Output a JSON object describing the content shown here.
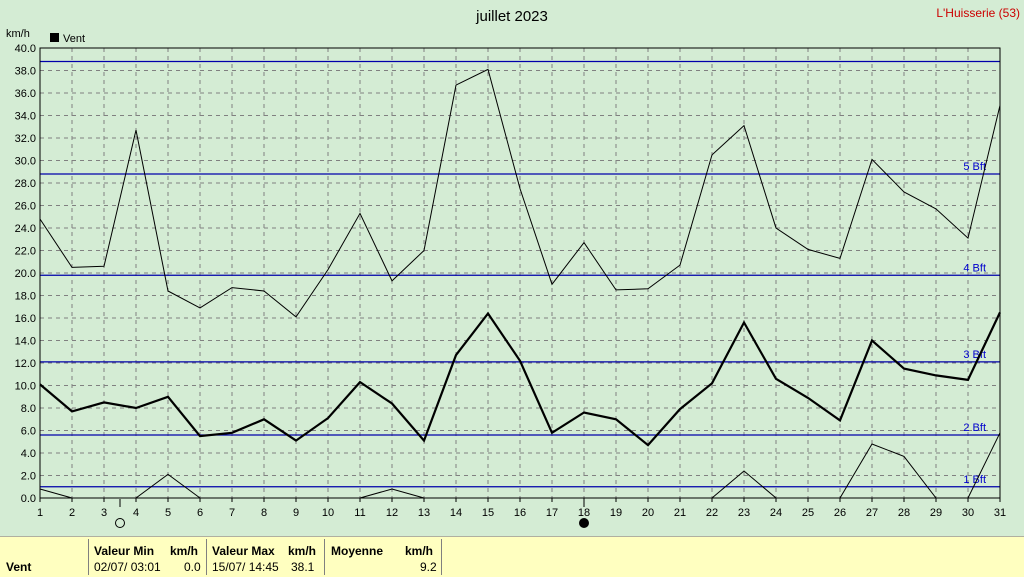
{
  "title": "juillet 2023",
  "station": "L'Huisserie (53)",
  "colors": {
    "background": "#d4ecd4",
    "beaufort_line": "#0000aa",
    "beaufort_text": "#0000cc",
    "grid": "#808080",
    "series": "#000000",
    "station": "#cc0000",
    "footer_bg": "#ffffc0"
  },
  "chart_data": {
    "type": "line",
    "title": "juillet 2023",
    "ylabel": "km/h",
    "xlabel": "",
    "legend": {
      "label": "Vent",
      "placement": "top-left"
    },
    "x": [
      1,
      2,
      3,
      4,
      5,
      6,
      7,
      8,
      9,
      10,
      11,
      12,
      13,
      14,
      15,
      16,
      17,
      18,
      19,
      20,
      21,
      22,
      23,
      24,
      25,
      26,
      27,
      28,
      29,
      30,
      31
    ],
    "xlim": [
      1,
      31
    ],
    "ylim": [
      0,
      40
    ],
    "y_tick_step": 2,
    "y_tick_labels": [
      "0.0",
      "2.0",
      "4.0",
      "6.0",
      "8.0",
      "10.0",
      "12.0",
      "14.0",
      "16.0",
      "18.0",
      "20.0",
      "22.0",
      "24.0",
      "26.0",
      "28.0",
      "30.0",
      "32.0",
      "34.0",
      "36.0",
      "38.0",
      "40.0"
    ],
    "grid": true,
    "series": [
      {
        "name": "Vent",
        "role": "mean",
        "values": [
          10.1,
          7.7,
          8.5,
          8.0,
          9.0,
          5.5,
          5.8,
          7.0,
          5.1,
          7.1,
          10.3,
          8.4,
          5.1,
          12.7,
          16.4,
          12.2,
          5.8,
          7.6,
          7.0,
          4.7,
          7.9,
          10.2,
          15.6,
          10.6,
          8.9,
          6.9,
          14.0,
          11.5,
          10.9,
          10.5,
          16.5
        ]
      },
      {
        "role": "max",
        "values": [
          24.8,
          20.5,
          20.6,
          32.7,
          18.4,
          16.9,
          18.7,
          18.4,
          16.1,
          20.3,
          25.3,
          19.3,
          22.0,
          36.7,
          38.1,
          27.5,
          19.0,
          22.7,
          18.5,
          18.6,
          20.7,
          30.5,
          33.1,
          24.0,
          22.1,
          21.3,
          30.1,
          27.2,
          25.7,
          23.1,
          34.9
        ]
      },
      {
        "role": "min",
        "values": [
          0.8,
          0.0,
          null,
          0.0,
          2.1,
          0.0,
          null,
          null,
          null,
          null,
          0.0,
          0.8,
          0.0,
          null,
          null,
          null,
          null,
          null,
          null,
          null,
          null,
          0.0,
          2.4,
          0.0,
          null,
          0.0,
          4.8,
          3.7,
          0.0,
          0.0,
          5.8
        ]
      }
    ],
    "reference_lines": [
      {
        "label": "1 Bft",
        "value": 1.0
      },
      {
        "label": "2 Bft",
        "value": 5.6
      },
      {
        "label": "3 Bft",
        "value": 12.1
      },
      {
        "label": "4 Bft",
        "value": 19.8
      },
      {
        "label": "5 Bft",
        "value": 28.8
      },
      {
        "label": "",
        "value": 38.8
      }
    ],
    "moon_phases": [
      {
        "day": 3.5,
        "phase": "full"
      },
      {
        "day": 18,
        "phase": "new"
      }
    ]
  },
  "stats": {
    "row_label": "Vent",
    "min": {
      "header": "Valeur Min",
      "unit": "km/h",
      "when": "02/07/  03:01",
      "value": "0.0"
    },
    "max": {
      "header": "Valeur Max",
      "unit": "km/h",
      "when": "15/07/  14:45",
      "value": "38.1"
    },
    "mean": {
      "header": "Moyenne",
      "unit": "km/h",
      "value": "9.2"
    }
  }
}
